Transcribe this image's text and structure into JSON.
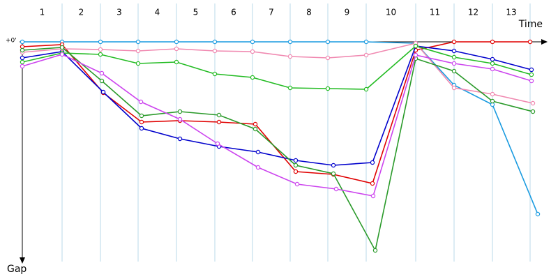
{
  "chart_data": {
    "type": "line",
    "x_label": "Time",
    "y_label": "Gap",
    "column_labels": [
      "1",
      "2",
      "3",
      "4",
      "5",
      "6",
      "7",
      "8",
      "9",
      "10",
      "11",
      "12",
      "13"
    ],
    "xlim": [
      0,
      753
    ],
    "xticks": [
      57,
      112,
      166,
      221,
      276,
      330,
      384,
      438,
      493,
      564,
      619,
      674,
      728
    ],
    "ylim": [
      0,
      320
    ],
    "yticks": [
      {
        "value": 0,
        "label": "+0'"
      }
    ],
    "grid": true,
    "series": [
      {
        "color": "#1a9be0",
        "x": [
          0,
          57,
          112,
          166,
          221,
          276,
          330,
          384,
          438,
          493,
          564,
          619,
          674,
          739
        ],
        "values": [
          0,
          0,
          0,
          0,
          0,
          0,
          0,
          0,
          0,
          0,
          2,
          62,
          90,
          247
        ]
      },
      {
        "color": "#e00000",
        "x": [
          0,
          57,
          116,
          171,
          226,
          282,
          334,
          392,
          446,
          502,
          564,
          619,
          674,
          728
        ],
        "values": [
          7,
          4,
          73,
          115,
          113,
          115,
          118,
          186,
          190,
          203,
          12,
          0,
          0,
          0
        ]
      },
      {
        "color": "#0000cc",
        "x": [
          0,
          57,
          116,
          171,
          226,
          282,
          338,
          392,
          446,
          502,
          564,
          619,
          674,
          730
        ],
        "values": [
          23,
          14,
          72,
          124,
          139,
          150,
          158,
          170,
          177,
          173,
          6,
          13,
          25,
          40
        ]
      },
      {
        "color": "#f088b0",
        "x": [
          0,
          57,
          112,
          166,
          221,
          276,
          330,
          384,
          438,
          493,
          564,
          619,
          674,
          732
        ],
        "values": [
          15,
          10,
          11,
          13,
          10,
          13,
          14,
          21,
          23,
          19,
          2,
          66,
          75,
          88
        ]
      },
      {
        "color": "#22bb22",
        "x": [
          0,
          57,
          112,
          166,
          221,
          276,
          330,
          384,
          438,
          493,
          564,
          619,
          674,
          730
        ],
        "values": [
          29,
          16,
          18,
          31,
          29,
          46,
          51,
          66,
          67,
          68,
          6,
          22,
          31,
          47
        ]
      },
      {
        "color": "#2a9a2a",
        "x": [
          0,
          57,
          114,
          171,
          226,
          282,
          334,
          392,
          446,
          506,
          564,
          619,
          674,
          732
        ],
        "values": [
          12,
          8,
          56,
          106,
          100,
          105,
          125,
          177,
          189,
          299,
          24,
          42,
          85,
          100
        ]
      },
      {
        "color": "#cc44ee",
        "x": [
          0,
          57,
          114,
          170,
          226,
          280,
          338,
          394,
          450,
          503,
          564,
          619,
          674,
          730
        ],
        "values": [
          35,
          18,
          45,
          86,
          111,
          146,
          180,
          204,
          211,
          221,
          19,
          31,
          39,
          56
        ]
      }
    ]
  }
}
